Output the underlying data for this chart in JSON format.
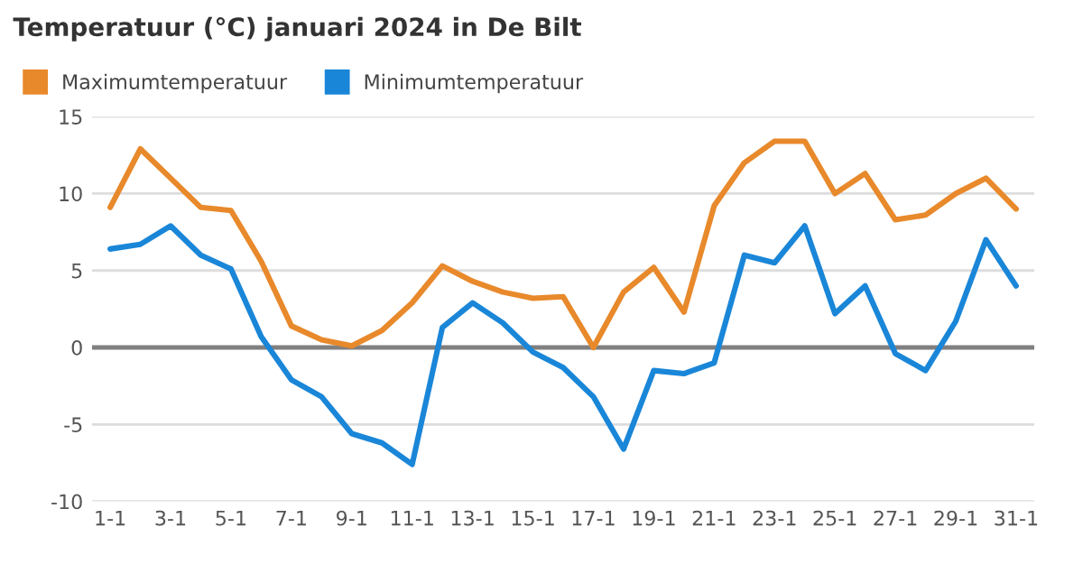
{
  "chart_data": {
    "type": "line",
    "title": "Temperatuur (°C) januari 2024 in De Bilt",
    "categories": [
      "1-1",
      null,
      "3-1",
      null,
      "5-1",
      null,
      "7-1",
      null,
      "9-1",
      null,
      "11-1",
      null,
      "13-1",
      null,
      "15-1",
      null,
      "17-1",
      null,
      "19-1",
      null,
      "21-1",
      null,
      "23-1",
      null,
      "25-1",
      null,
      "27-1",
      null,
      "29-1",
      null,
      "31-1"
    ],
    "series": [
      {
        "name": "Maximumtemperatuur",
        "color": "#e8892b",
        "values": [
          9.1,
          12.9,
          11.0,
          9.1,
          8.9,
          5.6,
          1.4,
          0.5,
          0.1,
          1.1,
          2.9,
          5.3,
          4.3,
          3.6,
          3.2,
          3.3,
          0.0,
          3.6,
          5.2,
          2.3,
          9.2,
          12.0,
          13.4,
          13.4,
          10.0,
          11.3,
          8.3,
          8.6,
          10.0,
          11.0,
          9.0
        ]
      },
      {
        "name": "Minimumtemperatuur",
        "color": "#1a86d8",
        "values": [
          6.4,
          6.7,
          7.9,
          6.0,
          5.1,
          0.7,
          -2.1,
          -3.2,
          -5.6,
          -6.2,
          -7.6,
          1.3,
          2.9,
          1.6,
          -0.3,
          -1.3,
          -3.2,
          -6.6,
          -1.5,
          -1.7,
          -1.0,
          6.0,
          5.5,
          7.9,
          2.2,
          4.0,
          -0.4,
          -1.5,
          1.7,
          7.0,
          4.0
        ]
      }
    ],
    "ylim": [
      -10,
      15
    ],
    "yticks": [
      {
        "value": -10,
        "label": "-10"
      },
      {
        "value": -5,
        "label": "-5"
      },
      0,
      5,
      10,
      15
    ],
    "ref_lines": [
      {
        "axis": "y",
        "value": 0,
        "color": "#808080"
      }
    ],
    "grid": "y",
    "legend": "top left"
  }
}
